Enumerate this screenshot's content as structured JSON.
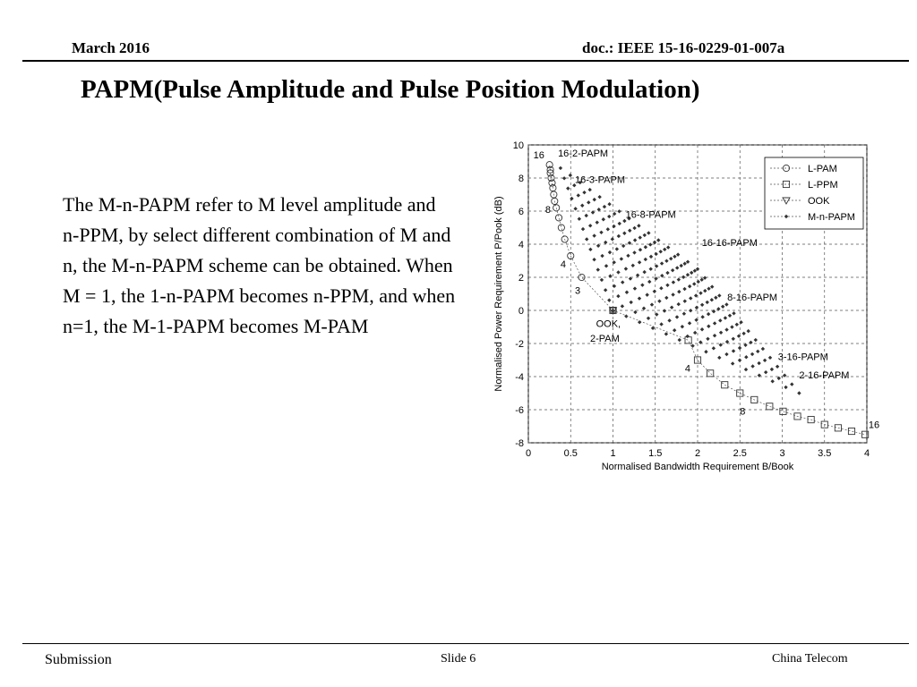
{
  "header": {
    "date": "March 2016",
    "doc_id": "doc.: IEEE 15-16-0229-01-007a"
  },
  "slide": {
    "title": "PAPM(Pulse Amplitude and Pulse Position Modulation)",
    "body": "The M-n-PAPM refer to M level amplitude and n-PPM, by select different combination of M and n, the M-n-PAPM scheme can be obtained. When M = 1, the 1-n-PAPM becomes n-PPM, and when n=1, the M-1-PAPM becomes M-PAM"
  },
  "footer": {
    "submission": "Submission",
    "slide_number": "Slide 6",
    "company": "China Telecom"
  },
  "chart_data": {
    "type": "scatter",
    "title": "",
    "xlabel": "Normalised Bandwidth Requirement B/Book",
    "ylabel": "Normalised Power Requirement P/Pook (dB)",
    "xlim": [
      0,
      4
    ],
    "ylim": [
      -8,
      10
    ],
    "xticks": [
      "0",
      "0.5",
      "1",
      "1.5",
      "2",
      "2.5",
      "3",
      "3.5",
      "4"
    ],
    "yticks": [
      "10",
      "8",
      "6",
      "4",
      "2",
      "0",
      "-2",
      "-4",
      "-6",
      "-8"
    ],
    "grid": true,
    "legend_position": "top-right",
    "legend": [
      "L-PAM",
      "L-PPM",
      "OOK",
      "M-n-PAPM"
    ],
    "colors": {
      "markers": "#333333",
      "grid": "#555555"
    },
    "series": [
      {
        "name": "L-PAM",
        "marker": "circle",
        "points": [
          [
            1.0,
            0.0
          ],
          [
            0.63,
            2.0
          ],
          [
            0.5,
            3.3
          ],
          [
            0.43,
            4.3
          ],
          [
            0.39,
            5.0
          ],
          [
            0.36,
            5.6
          ],
          [
            0.33,
            6.2
          ],
          [
            0.31,
            6.6
          ],
          [
            0.3,
            7.0
          ],
          [
            0.29,
            7.4
          ],
          [
            0.28,
            7.7
          ],
          [
            0.27,
            8.0
          ],
          [
            0.26,
            8.3
          ],
          [
            0.26,
            8.5
          ],
          [
            0.25,
            8.8
          ]
        ]
      },
      {
        "name": "L-PPM",
        "marker": "square",
        "points": [
          [
            1.0,
            0.0
          ],
          [
            1.89,
            -1.8
          ],
          [
            2.0,
            -3.0
          ],
          [
            2.15,
            -3.8
          ],
          [
            2.32,
            -4.5
          ],
          [
            2.5,
            -5.0
          ],
          [
            2.67,
            -5.4
          ],
          [
            2.85,
            -5.8
          ],
          [
            3.01,
            -6.1
          ],
          [
            3.18,
            -6.4
          ],
          [
            3.34,
            -6.6
          ],
          [
            3.5,
            -6.9
          ],
          [
            3.66,
            -7.1
          ],
          [
            3.82,
            -7.3
          ],
          [
            3.98,
            -7.5
          ]
        ]
      },
      {
        "name": "OOK",
        "marker": "triangle",
        "points": [
          [
            1.0,
            0.0
          ]
        ]
      },
      {
        "name": "M-n-PAPM",
        "marker": "dot",
        "note": "M = 2..16 levels combined with n = 2..16 positions; grid of points between the L-PAM and L-PPM curves",
        "corners": {
          "16-2-PAPM": [
            0.38,
            8.6
          ],
          "16-16-PAPM": [
            2.0,
            2.5
          ],
          "2-2-PAPM": [
            1.0,
            0.0
          ],
          "2-16-PAPM": [
            3.2,
            -5.0
          ]
        }
      }
    ],
    "annotations": [
      {
        "text": "16-2-PAPM",
        "x": 0.35,
        "y": 9.3
      },
      {
        "text": "16-3-PAPM",
        "x": 0.55,
        "y": 7.7
      },
      {
        "text": "16-8-PAPM",
        "x": 1.15,
        "y": 5.6
      },
      {
        "text": "16-16-PAPM",
        "x": 2.05,
        "y": 3.9
      },
      {
        "text": "8-16-PAPM",
        "x": 2.35,
        "y": 0.6
      },
      {
        "text": "3-16-PAPM",
        "x": 2.95,
        "y": -3.0
      },
      {
        "text": "2-16-PAPM",
        "x": 3.2,
        "y": -4.1
      },
      {
        "text": "16",
        "x": 0.06,
        "y": 9.2
      },
      {
        "text": "8",
        "x": 0.2,
        "y": 5.9
      },
      {
        "text": "4",
        "x": 0.38,
        "y": 2.6
      },
      {
        "text": "3",
        "x": 0.55,
        "y": 1.0
      },
      {
        "text": "OOK,",
        "x": 0.8,
        "y": -1.0
      },
      {
        "text": "2-PAM",
        "x": 0.73,
        "y": -1.9
      },
      {
        "text": "4",
        "x": 1.85,
        "y": -3.7
      },
      {
        "text": "8",
        "x": 2.5,
        "y": -6.3
      },
      {
        "text": "16",
        "x": 4.02,
        "y": -7.1
      }
    ]
  }
}
